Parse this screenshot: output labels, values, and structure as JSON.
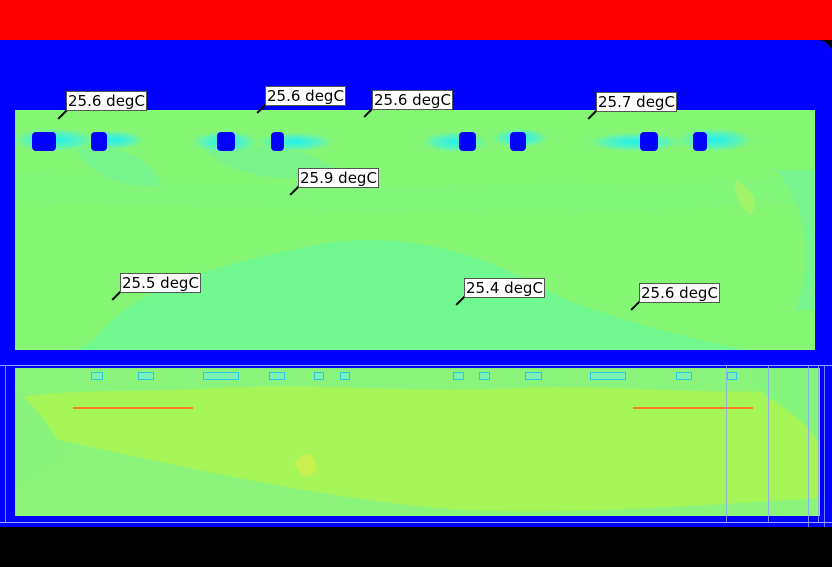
{
  "colors": {
    "top_bar": "#ff0000",
    "frame": "#0000ff",
    "background": "#000000",
    "upper_field": "#85f774",
    "lower_field": "#a6f559",
    "label_bg": "#ffffff",
    "orange_line": "#ff7f20"
  },
  "probes": [
    {
      "id": "p1",
      "text": "25.6 degC"
    },
    {
      "id": "p2",
      "text": "25.6 degC"
    },
    {
      "id": "p3",
      "text": "25.6 degC"
    },
    {
      "id": "p4",
      "text": "25.7 degC"
    },
    {
      "id": "p5",
      "text": "25.9 degC"
    },
    {
      "id": "p6",
      "text": "25.5 degC"
    },
    {
      "id": "p7",
      "text": "25.4 degC"
    },
    {
      "id": "p8",
      "text": "25.6 degC"
    }
  ]
}
